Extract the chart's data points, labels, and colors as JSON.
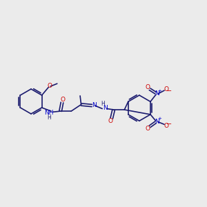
{
  "bg_color": "#ebebeb",
  "bond_color": "#1a1a6e",
  "oxygen_color": "#cc0000",
  "nitrogen_color": "#0000cc",
  "carbon_color": "#1a1a6e",
  "line_width": 1.2,
  "figsize": [
    3.0,
    3.0
  ],
  "dpi": 100,
  "xlim": [
    0,
    10
  ],
  "ylim": [
    0,
    10
  ]
}
